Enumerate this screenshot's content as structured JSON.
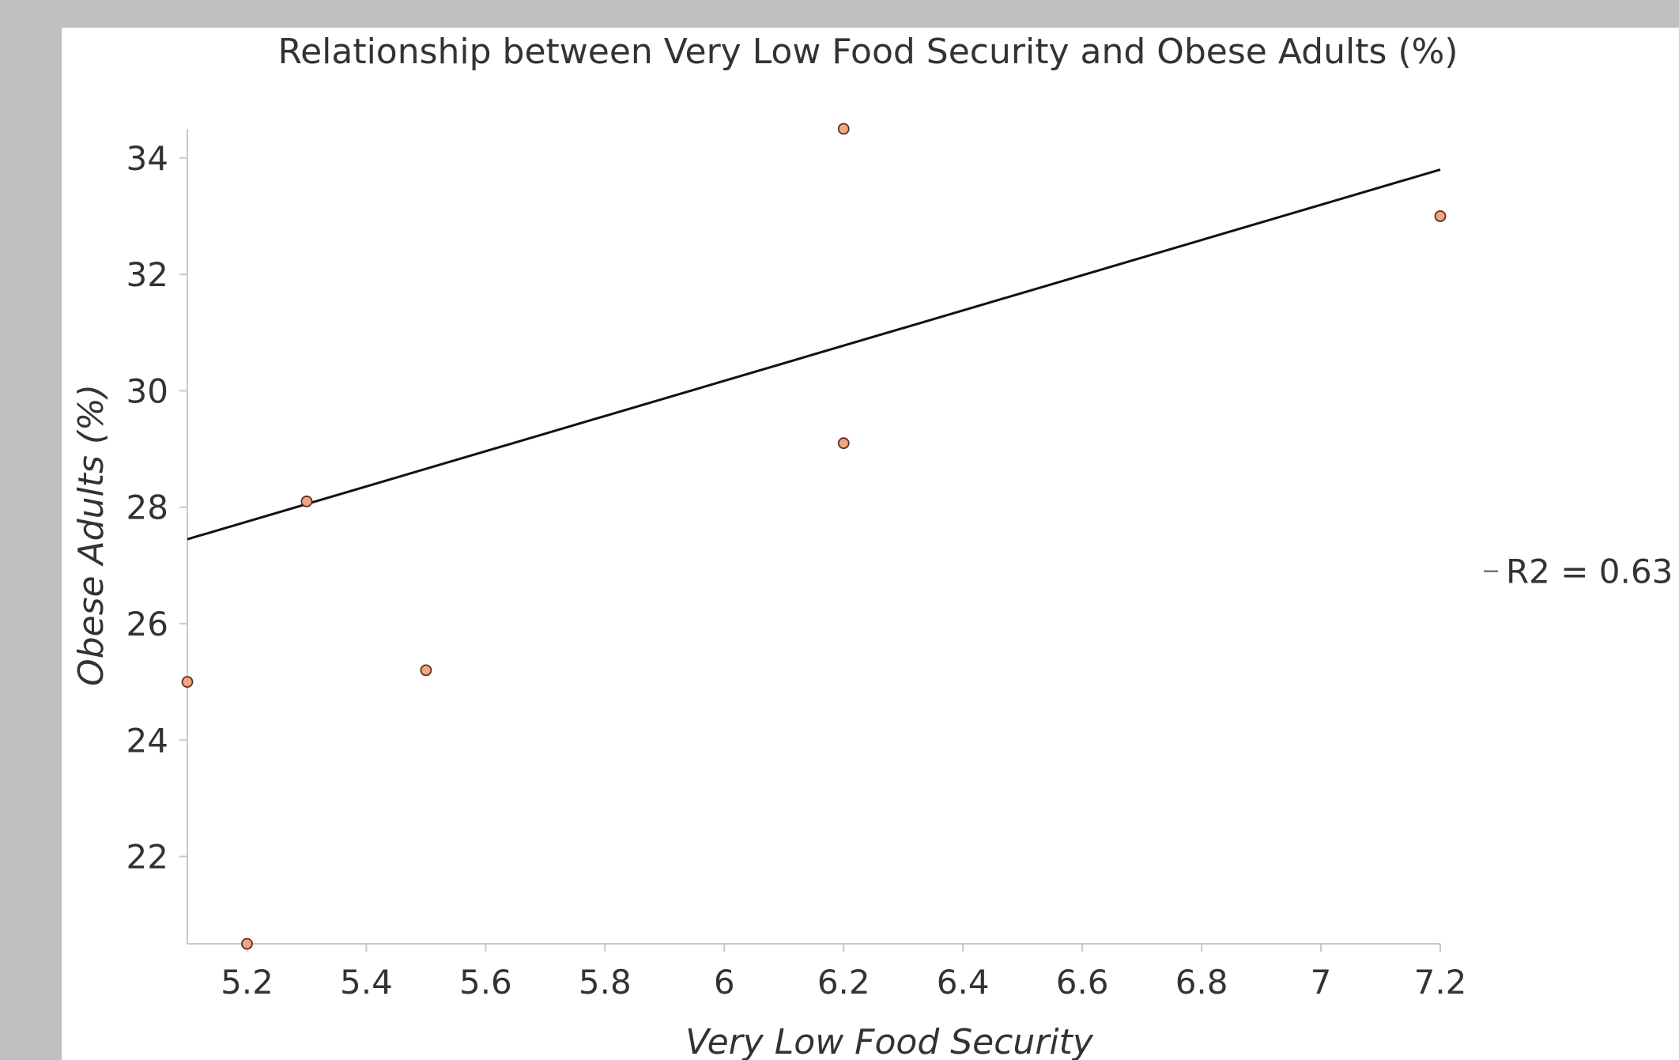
{
  "chart_data": {
    "type": "scatter",
    "title": "Relationship between Very Low Food Security and Obese Adults (%)",
    "xlabel": "Very Low Food Security",
    "ylabel": "Obese Adults (%)",
    "xlim": [
      5.1,
      7.2
    ],
    "ylim": [
      20.5,
      34.5
    ],
    "x_ticks": [
      "5.2",
      "5.4",
      "5.6",
      "5.8",
      "6",
      "6.2",
      "6.4",
      "6.6",
      "6.8",
      "7",
      "7.2"
    ],
    "y_ticks": [
      "22",
      "24",
      "26",
      "28",
      "30",
      "32",
      "34"
    ],
    "grid": false,
    "series": [
      {
        "color": "#f4a582",
        "points": [
          {
            "x": 5.1,
            "y": 25.0
          },
          {
            "x": 5.2,
            "y": 20.5
          },
          {
            "x": 5.3,
            "y": 28.1
          },
          {
            "x": 5.5,
            "y": 25.2
          },
          {
            "x": 6.2,
            "y": 34.5
          },
          {
            "x": 6.2,
            "y": 29.1
          },
          {
            "x": 7.2,
            "y": 33.0
          }
        ]
      }
    ],
    "trendline": {
      "type": "linear",
      "from": {
        "x": 5.1,
        "y": 27.45
      },
      "to": {
        "x": 7.2,
        "y": 33.8
      },
      "color": "#111111"
    },
    "annotation": {
      "text": "R2 = 0.63",
      "anchor_y": 26.9
    }
  }
}
